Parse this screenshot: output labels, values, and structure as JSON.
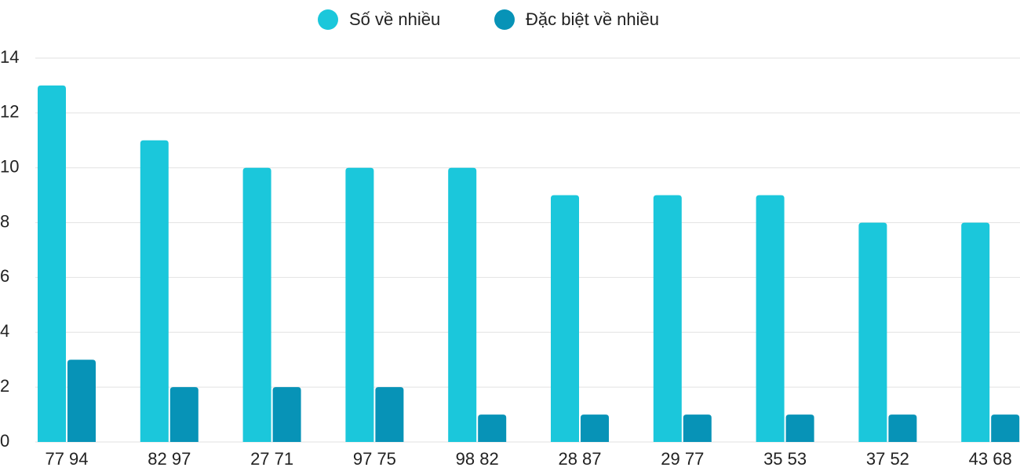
{
  "chart_data": {
    "type": "bar",
    "categories": [
      "77 94",
      "82 97",
      "27 71",
      "97 75",
      "98 82",
      "28 87",
      "29 77",
      "35 53",
      "37 52",
      "43 68"
    ],
    "series": [
      {
        "name": "Số về nhiều",
        "color": "#1bc7db",
        "values": [
          13,
          11,
          10,
          10,
          10,
          9,
          9,
          9,
          8,
          8
        ]
      },
      {
        "name": "Đặc biệt về nhiều",
        "color": "#0793b7",
        "values": [
          3,
          2,
          2,
          2,
          1,
          1,
          1,
          1,
          1,
          1
        ]
      }
    ],
    "ylim": [
      0,
      14
    ],
    "yticks": [
      0,
      2,
      4,
      6,
      8,
      10,
      12,
      14
    ],
    "grid": true,
    "legend": "top"
  }
}
